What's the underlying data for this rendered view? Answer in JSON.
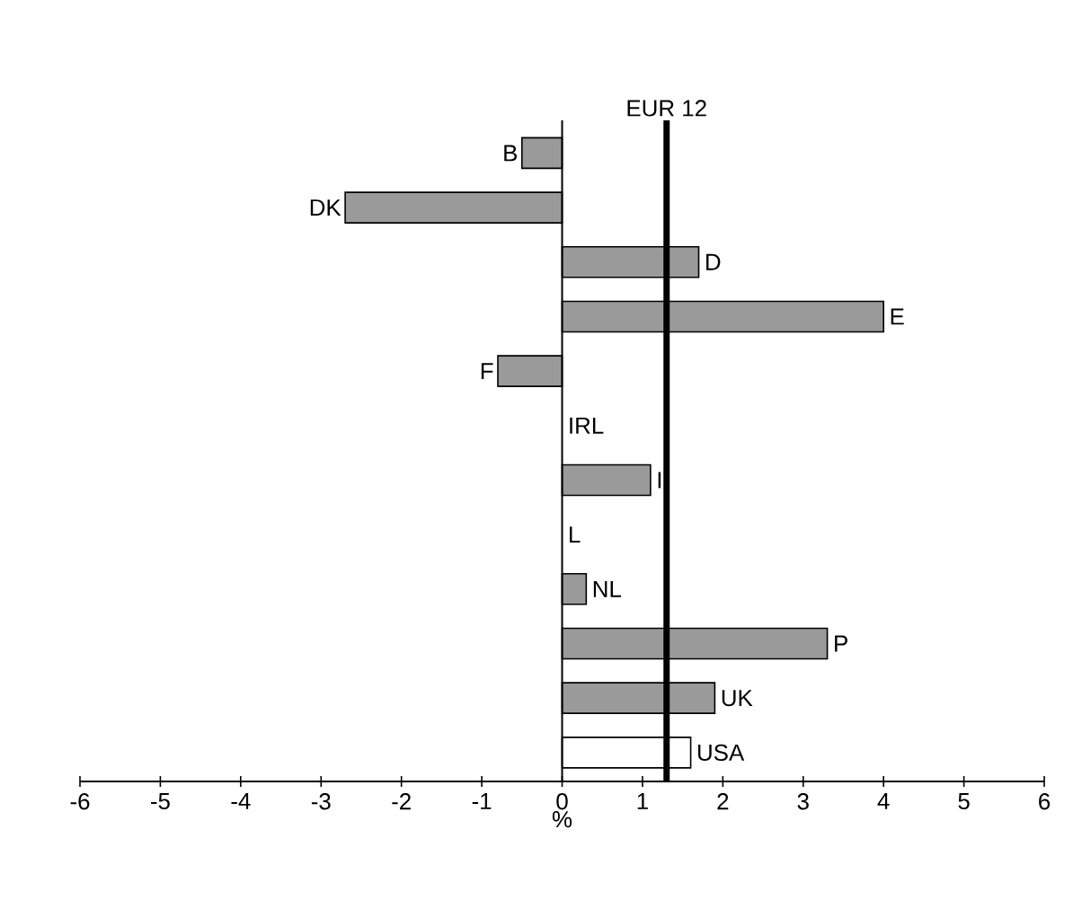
{
  "chart_data": {
    "type": "bar",
    "orientation": "horizontal",
    "xlabel": "%",
    "categories": [
      "B",
      "DK",
      "D",
      "E",
      "F",
      "IRL",
      "I",
      "L",
      "NL",
      "P",
      "UK",
      "USA"
    ],
    "values": [
      -0.5,
      -2.7,
      1.7,
      4.0,
      -0.8,
      null,
      1.1,
      null,
      0.3,
      3.3,
      1.9,
      1.6
    ],
    "colors": [
      "#9a9a9a",
      "#9a9a9a",
      "#9a9a9a",
      "#9a9a9a",
      "#9a9a9a",
      "#9a9a9a",
      "#9a9a9a",
      "#9a9a9a",
      "#9a9a9a",
      "#9a9a9a",
      "#9a9a9a",
      "#ffffff"
    ],
    "xlim": [
      -6,
      6
    ],
    "xticks": [
      -6,
      -5,
      -4,
      -3,
      -2,
      -1,
      0,
      1,
      2,
      3,
      4,
      5,
      6
    ],
    "ref_lines": [
      {
        "axis": "x",
        "value": 1.3,
        "label": "EUR 12"
      }
    ],
    "grid": false
  }
}
